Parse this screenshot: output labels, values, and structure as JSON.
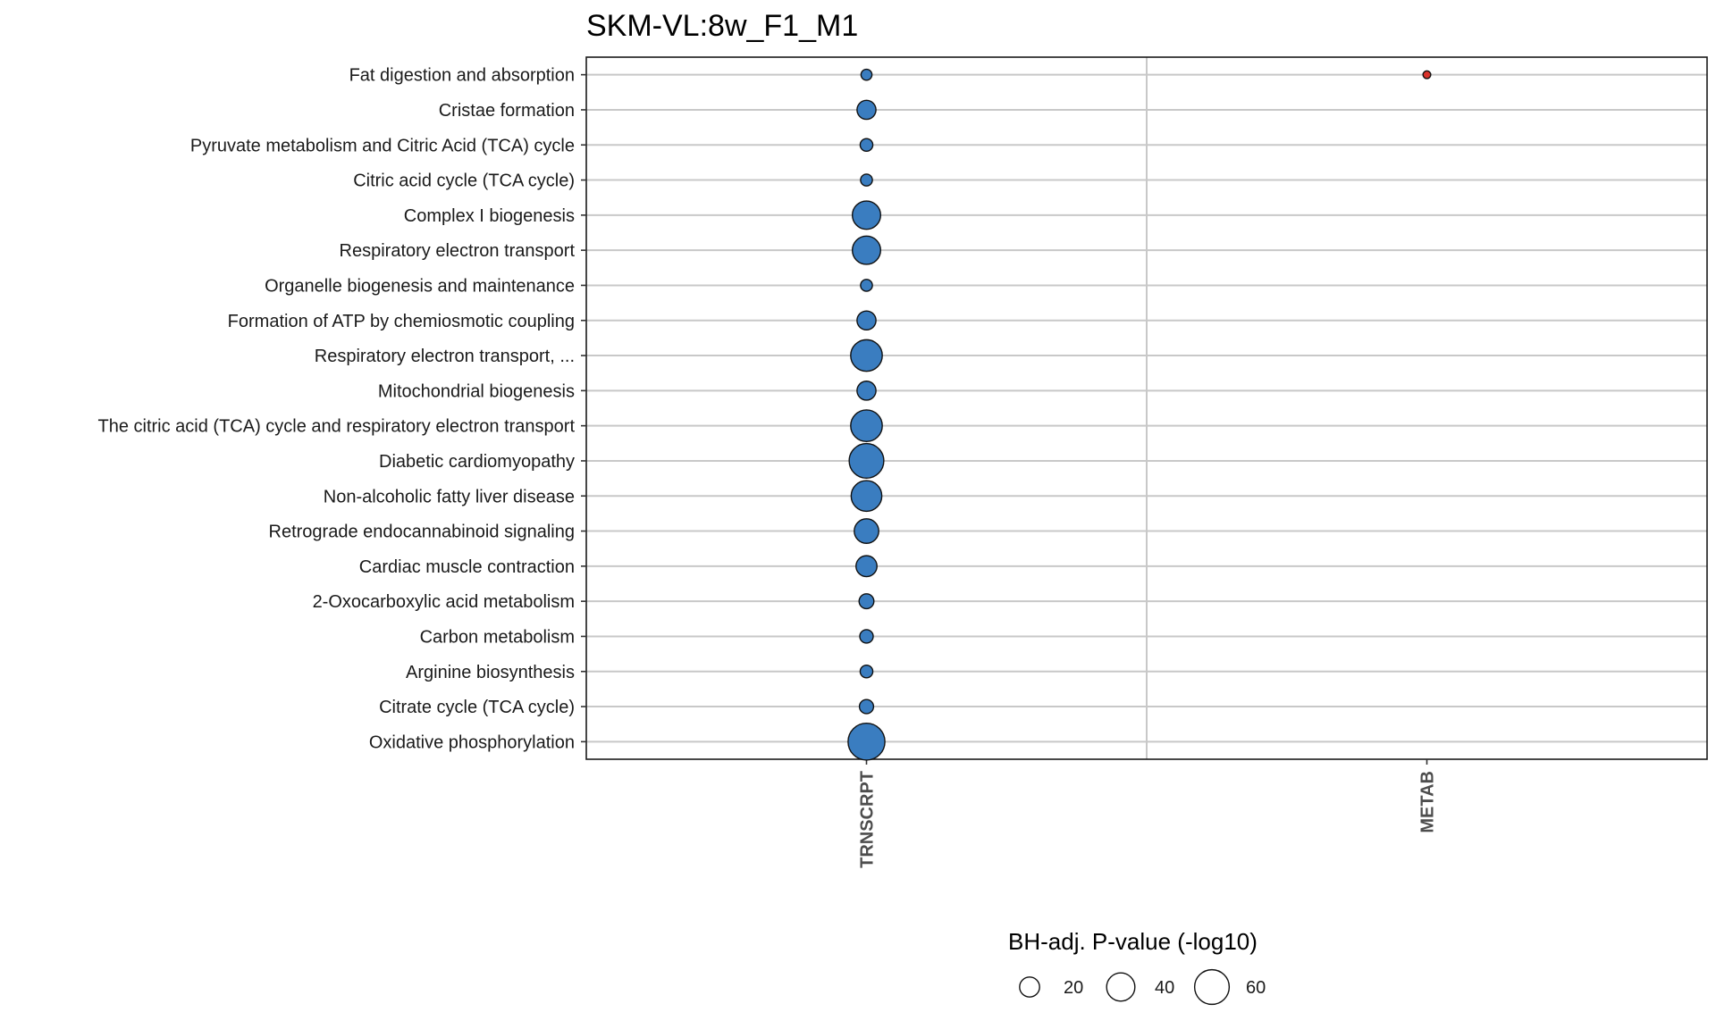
{
  "chart_data": {
    "type": "scatter",
    "title": "SKM-VL:8w_F1_M1",
    "x_categories": [
      "TRNSCRPT",
      "METAB"
    ],
    "y_categories": [
      "Fat digestion and absorption",
      "Cristae formation",
      "Pyruvate metabolism and Citric Acid (TCA) cycle",
      "Citric acid cycle (TCA cycle)",
      "Complex I biogenesis",
      "Respiratory electron transport",
      "Organelle biogenesis and maintenance",
      "Formation of ATP by chemiosmotic coupling",
      "Respiratory electron transport, ...",
      "Mitochondrial biogenesis",
      "The citric acid (TCA) cycle and respiratory electron transport",
      "Diabetic cardiomyopathy",
      "Non-alcoholic fatty liver disease",
      "Retrograde endocannabinoid signaling",
      "Cardiac muscle contraction",
      "2-Oxocarboxylic acid metabolism",
      "Carbon metabolism",
      "Arginine biosynthesis",
      "Citrate cycle (TCA cycle)",
      "Oxidative phosphorylation"
    ],
    "points": [
      {
        "x": "TRNSCRPT",
        "y": "Fat digestion and absorption",
        "size": 6,
        "color": "#3a7dc0"
      },
      {
        "x": "METAB",
        "y": "Fat digestion and absorption",
        "size": 3,
        "color": "#d9332b"
      },
      {
        "x": "TRNSCRPT",
        "y": "Cristae formation",
        "size": 18,
        "color": "#3a7dc0"
      },
      {
        "x": "TRNSCRPT",
        "y": "Pyruvate metabolism and Citric Acid (TCA) cycle",
        "size": 8,
        "color": "#3a7dc0"
      },
      {
        "x": "TRNSCRPT",
        "y": "Citric acid cycle (TCA cycle)",
        "size": 7,
        "color": "#3a7dc0"
      },
      {
        "x": "TRNSCRPT",
        "y": "Complex I biogenesis",
        "size": 40,
        "color": "#3a7dc0"
      },
      {
        "x": "TRNSCRPT",
        "y": "Respiratory electron transport",
        "size": 40,
        "color": "#3a7dc0"
      },
      {
        "x": "TRNSCRPT",
        "y": "Organelle biogenesis and maintenance",
        "size": 7,
        "color": "#3a7dc0"
      },
      {
        "x": "TRNSCRPT",
        "y": "Formation of ATP by chemiosmotic coupling",
        "size": 18,
        "color": "#3a7dc0"
      },
      {
        "x": "TRNSCRPT",
        "y": "Respiratory electron transport, ...",
        "size": 50,
        "color": "#3a7dc0"
      },
      {
        "x": "TRNSCRPT",
        "y": "Mitochondrial biogenesis",
        "size": 18,
        "color": "#3a7dc0"
      },
      {
        "x": "TRNSCRPT",
        "y": "The citric acid (TCA) cycle and respiratory electron transport",
        "size": 50,
        "color": "#3a7dc0"
      },
      {
        "x": "TRNSCRPT",
        "y": "Diabetic cardiomyopathy",
        "size": 60,
        "color": "#3a7dc0"
      },
      {
        "x": "TRNSCRPT",
        "y": "Non-alcoholic fatty liver disease",
        "size": 47,
        "color": "#3a7dc0"
      },
      {
        "x": "TRNSCRPT",
        "y": "Retrograde endocannabinoid signaling",
        "size": 30,
        "color": "#3a7dc0"
      },
      {
        "x": "TRNSCRPT",
        "y": "Cardiac muscle contraction",
        "size": 22,
        "color": "#3a7dc0"
      },
      {
        "x": "TRNSCRPT",
        "y": "2-Oxocarboxylic acid metabolism",
        "size": 11,
        "color": "#3a7dc0"
      },
      {
        "x": "TRNSCRPT",
        "y": "Carbon metabolism",
        "size": 9,
        "color": "#3a7dc0"
      },
      {
        "x": "TRNSCRPT",
        "y": "Arginine biosynthesis",
        "size": 8,
        "color": "#3a7dc0"
      },
      {
        "x": "TRNSCRPT",
        "y": "Citrate cycle (TCA cycle)",
        "size": 10,
        "color": "#3a7dc0"
      },
      {
        "x": "TRNSCRPT",
        "y": "Oxidative phosphorylation",
        "size": 68,
        "color": "#3a7dc0"
      }
    ],
    "legend": {
      "title": "BH-adj. P-value (-log10)",
      "values": [
        20,
        40,
        60
      ],
      "position": "bottom"
    },
    "grid": true
  }
}
